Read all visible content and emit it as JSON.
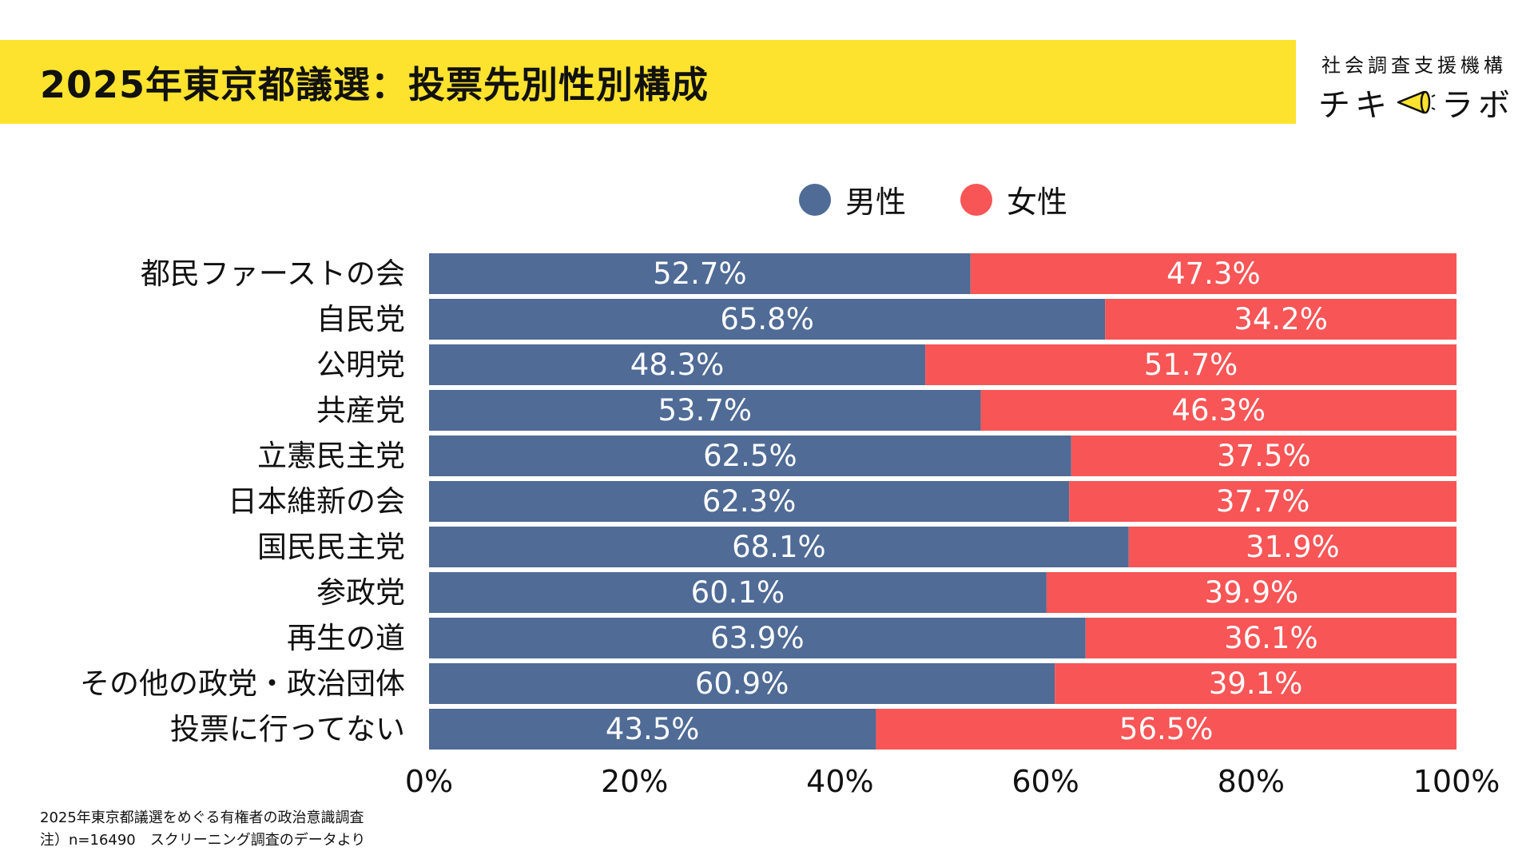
{
  "title": "2025年東京都議選：投票先別性別構成",
  "brand": {
    "org": "社会調査支援機構",
    "logo_left": "チキ",
    "logo_right": "ラボ",
    "logo_icon": "megaphone-icon"
  },
  "legend": [
    {
      "label": "男性",
      "color": "#4f6b96"
    },
    {
      "label": "女性",
      "color": "#f75556"
    }
  ],
  "chart_data": {
    "type": "bar",
    "orientation": "horizontal",
    "stacked": "percent",
    "categories": [
      "都民ファーストの会",
      "自民党",
      "公明党",
      "共産党",
      "立憲民主党",
      "日本維新の会",
      "国民民主党",
      "参政党",
      "再生の道",
      "その他の政党・政治団体",
      "投票に行ってない"
    ],
    "series": [
      {
        "name": "男性",
        "color": "#4f6b96",
        "values": [
          52.7,
          65.8,
          48.3,
          53.7,
          62.5,
          62.3,
          68.1,
          60.1,
          63.9,
          60.9,
          43.5
        ]
      },
      {
        "name": "女性",
        "color": "#f75556",
        "values": [
          47.3,
          34.2,
          51.7,
          46.3,
          37.5,
          37.7,
          31.9,
          39.9,
          36.1,
          39.1,
          56.5
        ]
      }
    ],
    "data_labels": [
      [
        "52.7%",
        "65.8%",
        "48.3%",
        "53.7%",
        "62.5%",
        "62.3%",
        "68.1%",
        "60.1%",
        "63.9%",
        "60.9%",
        "43.5%"
      ],
      [
        "47.3%",
        "34.2%",
        "51.7%",
        "46.3%",
        "37.5%",
        "37.7%",
        "31.9%",
        "39.9%",
        "36.1%",
        "39.1%",
        "56.5%"
      ]
    ],
    "xlim": [
      0,
      100
    ],
    "xticks": [
      "0%",
      "20%",
      "40%",
      "60%",
      "80%",
      "100%"
    ],
    "grid": false,
    "legend_position": "top-center"
  },
  "footnote": {
    "line1": "2025年東京都議選をめぐる有権者の政治意識調査",
    "line2": "注）n=16490　スクリーニング調査のデータより"
  }
}
